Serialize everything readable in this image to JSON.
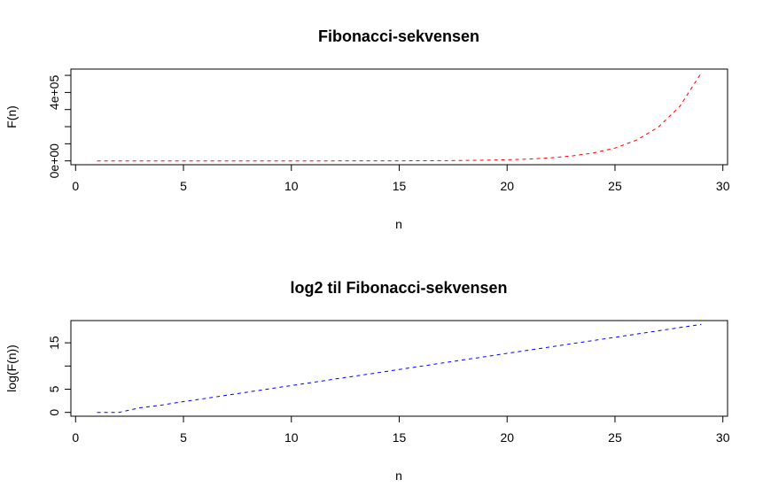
{
  "chart_data": [
    {
      "type": "line",
      "title": "Fibonacci-sekvensen",
      "xlabel": "n",
      "ylabel": "F(n)",
      "xlim": [
        1,
        29
      ],
      "ylim": [
        0,
        514229
      ],
      "x_ticks": [
        0,
        5,
        10,
        15,
        20,
        25,
        30
      ],
      "y_ticks": [
        0,
        100000,
        200000,
        300000,
        400000,
        500000
      ],
      "y_tick_labels": [
        "0e+00",
        "",
        "",
        "",
        "4e+05",
        ""
      ],
      "line_style": "dashed",
      "color": "#ff0000",
      "grid": false,
      "series": [
        {
          "x": [
            1,
            2,
            3,
            4,
            5,
            6,
            7,
            8,
            9,
            10,
            11,
            12,
            13,
            14,
            15,
            16,
            17,
            18,
            19,
            20,
            21,
            22,
            23,
            24,
            25,
            26,
            27,
            28,
            29
          ],
          "y": [
            1,
            1,
            2,
            3,
            5,
            8,
            13,
            21,
            34,
            55,
            89,
            144,
            233,
            377,
            610,
            987,
            1597,
            2584,
            4181,
            6765,
            10946,
            17711,
            28657,
            46368,
            75025,
            121393,
            196418,
            317811,
            514229
          ]
        }
      ]
    },
    {
      "type": "line",
      "title": "log2 til Fibonacci-sekvensen",
      "xlabel": "n",
      "ylabel": "log(F(n))",
      "xlim": [
        1,
        29
      ],
      "ylim": [
        0,
        18.97
      ],
      "x_ticks": [
        0,
        5,
        10,
        15,
        20,
        25,
        30
      ],
      "y_ticks": [
        0,
        5,
        10,
        15
      ],
      "y_tick_labels": [
        "0",
        "5",
        "",
        "15"
      ],
      "line_style": "dashed",
      "color": "#0000ff",
      "grid": false,
      "series": [
        {
          "x": [
            1,
            2,
            3,
            4,
            5,
            6,
            7,
            8,
            9,
            10,
            11,
            12,
            13,
            14,
            15,
            16,
            17,
            18,
            19,
            20,
            21,
            22,
            23,
            24,
            25,
            26,
            27,
            28,
            29
          ],
          "y": [
            0,
            0,
            1,
            1.585,
            2.322,
            3,
            3.7,
            4.392,
            5.087,
            5.781,
            6.476,
            7.17,
            7.864,
            8.559,
            9.253,
            9.947,
            10.641,
            11.335,
            12.03,
            12.724,
            13.418,
            14.112,
            14.807,
            15.501,
            16.195,
            16.889,
            17.584,
            18.278,
            18.972
          ]
        }
      ]
    }
  ]
}
